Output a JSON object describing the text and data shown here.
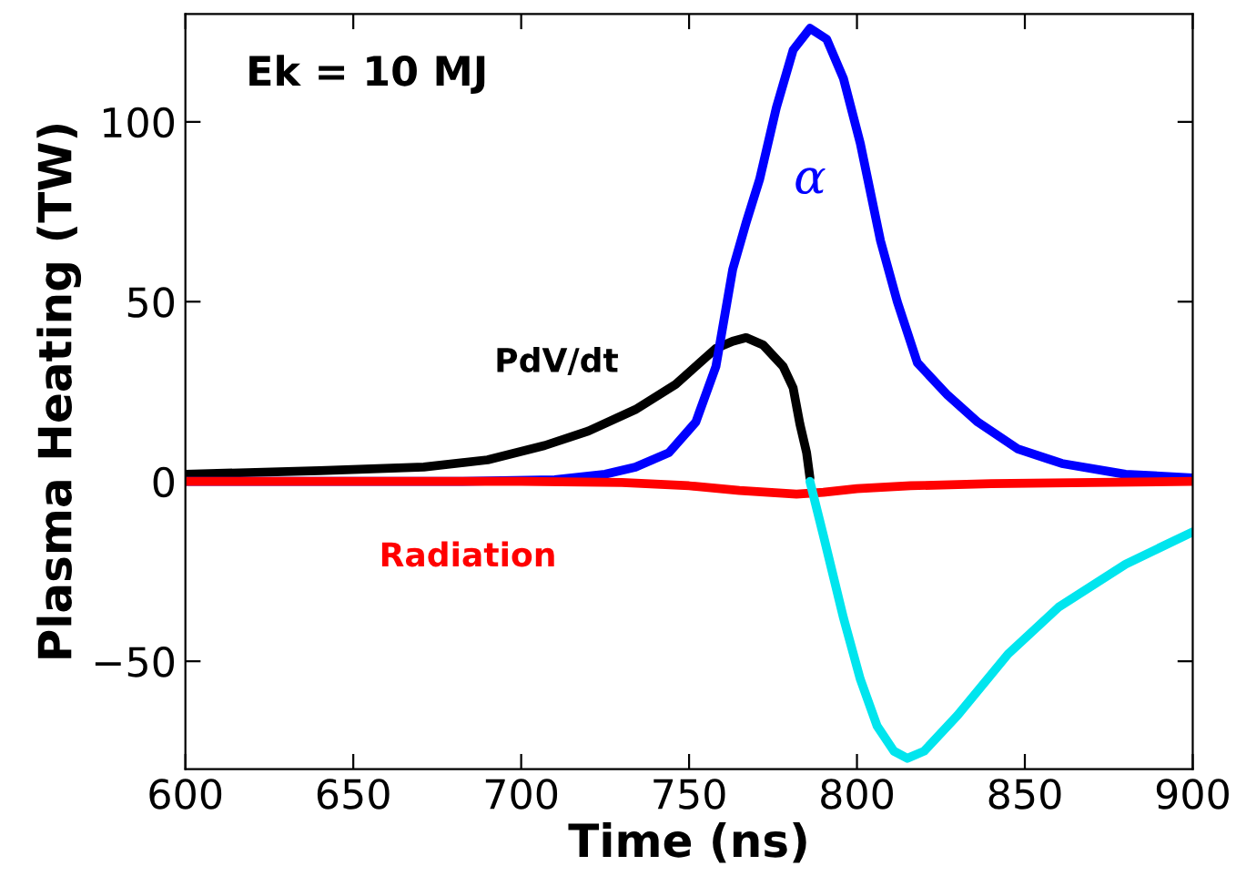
{
  "chart_data": {
    "type": "line",
    "xlabel": "Time (ns)",
    "ylabel": "Plasma Heating (TW)",
    "annotations": [
      "Ek = 10 MJ"
    ],
    "xlim": [
      600,
      900
    ],
    "xticks": [
      600,
      650,
      700,
      750,
      800,
      850,
      900
    ],
    "ylim": [
      -80,
      130
    ],
    "yticks": [
      -50,
      0,
      50,
      100
    ],
    "grid": false,
    "legend": false,
    "marker": "none",
    "line_style": "solid",
    "series": [
      {
        "name": "PdV/dt",
        "color": "#000000",
        "x": [
          600,
          640,
          671,
          690,
          707,
          720,
          734,
          746,
          758,
          763,
          767,
          772,
          778,
          781,
          783,
          785,
          786
        ],
        "values": [
          2,
          3,
          4,
          6,
          10,
          14,
          20,
          27,
          37,
          39,
          40,
          38,
          32,
          26,
          16,
          8,
          1
        ]
      },
      {
        "name": "α",
        "color": "#0000ff",
        "x": [
          600,
          680,
          710,
          725,
          734,
          744,
          752,
          758,
          763,
          767,
          771,
          776,
          781,
          786,
          791,
          796,
          801,
          807,
          812,
          818,
          827,
          836,
          848,
          861,
          880,
          900
        ],
        "values": [
          0,
          0,
          0.5,
          2,
          4,
          8,
          16.5,
          32,
          59,
          72,
          84,
          104,
          120,
          126,
          123,
          112,
          94,
          67,
          50,
          33,
          24,
          16.5,
          9,
          5,
          2,
          1
        ]
      },
      {
        "name": "Radiation",
        "color": "#ff0000",
        "x": [
          600,
          700,
          730,
          750,
          765,
          782,
          790,
          800,
          816,
          840,
          870,
          900
        ],
        "values": [
          0,
          0,
          -0.3,
          -1.2,
          -2.5,
          -3.5,
          -3,
          -2,
          -1.2,
          -0.6,
          -0.3,
          0
        ]
      },
      {
        "color": "#00e5ee",
        "x": [
          786,
          790,
          796,
          801,
          806,
          811,
          815,
          820,
          830,
          845,
          860,
          880,
          900
        ],
        "values": [
          0,
          -15,
          -38,
          -55,
          -68,
          -75,
          -77,
          -75,
          -65,
          -48,
          -35,
          -23,
          -14
        ]
      }
    ]
  }
}
